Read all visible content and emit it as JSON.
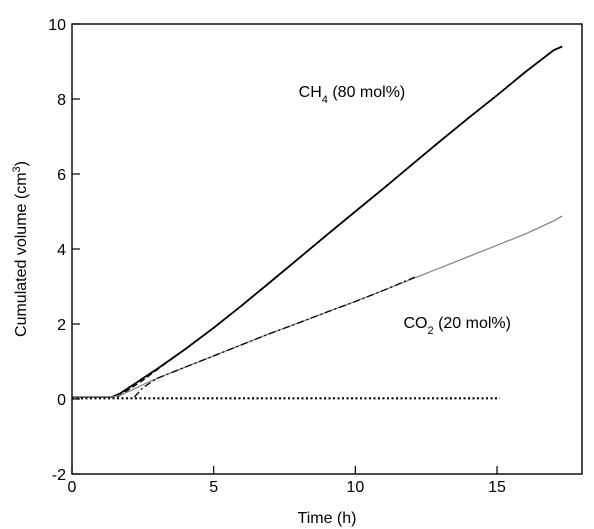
{
  "chart_data": {
    "type": "line",
    "xlabel": "Time (h)",
    "ylabel": {
      "pre": "Cumulated volume (cm",
      "sup": "3",
      "post": ")"
    },
    "xlim": [
      0,
      18
    ],
    "ylim": [
      -2,
      10
    ],
    "xticks": [
      0,
      5,
      10,
      15
    ],
    "yticks": [
      -2,
      0,
      2,
      4,
      6,
      8,
      10
    ],
    "grid": false,
    "annotations": [
      {
        "id": "ch4",
        "base": "CH",
        "sub": "4",
        "rest": " (80 mol%)",
        "x": 8.0,
        "y": 8.05
      },
      {
        "id": "co2",
        "base": "CO",
        "sub": "2",
        "rest": " (20 mol%)",
        "x": 11.7,
        "y": 1.9
      }
    ],
    "series": [
      {
        "id": "ch4-measured",
        "style": "solid",
        "color": "#000000",
        "x": [
          0,
          1.4,
          1.7,
          2,
          2.5,
          3,
          4,
          5,
          6,
          7,
          8,
          9,
          10,
          11,
          12,
          13,
          14,
          15,
          16,
          17,
          17.3
        ],
        "y": [
          0.05,
          0.05,
          0.15,
          0.3,
          0.55,
          0.8,
          1.33,
          1.9,
          2.5,
          3.12,
          3.75,
          4.38,
          5.0,
          5.62,
          6.25,
          6.88,
          7.5,
          8.1,
          8.72,
          9.3,
          9.4
        ]
      },
      {
        "id": "ch4-model",
        "style": "dashed",
        "color": "#000000",
        "x": [
          1.6,
          2,
          2.5,
          3,
          4,
          5,
          6,
          7,
          8,
          9,
          10,
          11,
          12,
          13,
          14,
          15,
          16,
          17
        ],
        "y": [
          0.05,
          0.25,
          0.5,
          0.78,
          1.33,
          1.9,
          2.5,
          3.12,
          3.75,
          4.38,
          5.0,
          5.62,
          6.25,
          6.88,
          7.5,
          8.1,
          8.72,
          9.3
        ]
      },
      {
        "id": "co2-measured",
        "style": "solid",
        "color": "#888888",
        "x": [
          0,
          1.4,
          1.7,
          2,
          2.5,
          3,
          4,
          5,
          6,
          7,
          8,
          9,
          10,
          11,
          12,
          13,
          14,
          15,
          16,
          17,
          17.3
        ],
        "y": [
          0.05,
          0.05,
          0.1,
          0.2,
          0.38,
          0.55,
          0.85,
          1.15,
          1.45,
          1.75,
          2.03,
          2.32,
          2.6,
          2.9,
          3.2,
          3.5,
          3.8,
          4.1,
          4.4,
          4.75,
          4.88
        ]
      },
      {
        "id": "co2-model",
        "style": "dashdot",
        "color": "#000000",
        "x": [
          2.2,
          2.5,
          3,
          4,
          5,
          6,
          7,
          8,
          9,
          10,
          11,
          12.1
        ],
        "y": [
          0.05,
          0.3,
          0.55,
          0.85,
          1.15,
          1.45,
          1.75,
          2.03,
          2.32,
          2.6,
          2.9,
          3.25
        ]
      },
      {
        "id": "blank-line",
        "style": "dotted",
        "color": "#000000",
        "x": [
          0,
          15.1
        ],
        "y": [
          0.02,
          0.02
        ]
      }
    ]
  }
}
